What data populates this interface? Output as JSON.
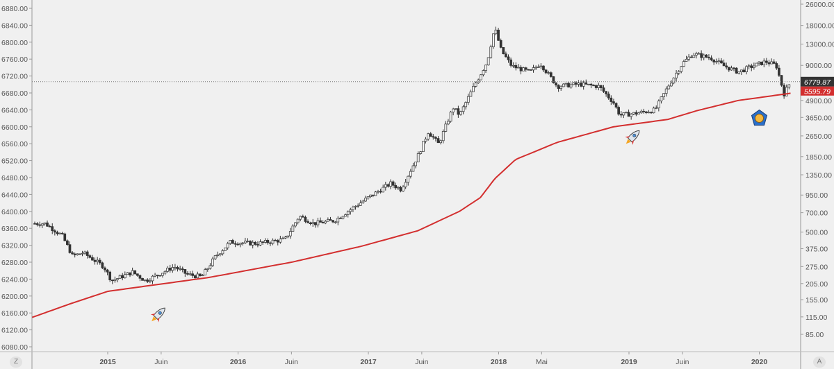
{
  "chart_data": {
    "type": "candlestick",
    "scale": "log",
    "title": "",
    "left_axis_ticks": [
      "6880.00",
      "6840.00",
      "6800.00",
      "6760.00",
      "6720.00",
      "6680.00",
      "6640.00",
      "6600.00",
      "6560.00",
      "6520.00",
      "6480.00",
      "6440.00",
      "6400.00",
      "6360.00",
      "6320.00",
      "6280.00",
      "6240.00",
      "6200.00",
      "6160.00",
      "6120.00",
      "6080.00"
    ],
    "right_axis_ticks": [
      26000,
      18000,
      13000,
      9000,
      4900,
      3650,
      2650,
      1850,
      1350,
      950,
      700,
      500,
      375,
      275,
      205,
      155,
      115,
      85
    ],
    "right_axis_labels": [
      "26000.00",
      "18000.00",
      "13000.00",
      "9000.00",
      "4900.00",
      "3650.00",
      "2650.00",
      "1850.00",
      "1350.00",
      "950.00",
      "700.00",
      "500.00",
      "375.00",
      "275.00",
      "205.00",
      "155.00",
      "115.00",
      "85.00"
    ],
    "ylim": [
      85,
      26000
    ],
    "xlim": [
      2014.42,
      2020.32
    ],
    "x_ticks": [
      {
        "t": 2015.0,
        "label": "2015",
        "major": true
      },
      {
        "t": 2015.41,
        "label": "Juin",
        "major": false
      },
      {
        "t": 2016.0,
        "label": "2016",
        "major": true
      },
      {
        "t": 2016.41,
        "label": "Juin",
        "major": false
      },
      {
        "t": 2017.0,
        "label": "2017",
        "major": true
      },
      {
        "t": 2017.41,
        "label": "Juin",
        "major": false
      },
      {
        "t": 2018.0,
        "label": "2018",
        "major": true
      },
      {
        "t": 2018.33,
        "label": "Mai",
        "major": false
      },
      {
        "t": 2019.0,
        "label": "2019",
        "major": true
      },
      {
        "t": 2019.41,
        "label": "Juin",
        "major": false
      },
      {
        "t": 2020.0,
        "label": "2020",
        "major": true
      }
    ],
    "price_path": [
      [
        2014.44,
        580
      ],
      [
        2014.52,
        580
      ],
      [
        2014.65,
        470
      ],
      [
        2014.73,
        330
      ],
      [
        2014.81,
        350
      ],
      [
        2014.97,
        275
      ],
      [
        2015.03,
        215
      ],
      [
        2015.19,
        250
      ],
      [
        2015.29,
        215
      ],
      [
        2015.51,
        275
      ],
      [
        2015.61,
        240
      ],
      [
        2015.72,
        230
      ],
      [
        2015.83,
        330
      ],
      [
        2015.94,
        420
      ],
      [
        2016.15,
        410
      ],
      [
        2016.36,
        440
      ],
      [
        2016.47,
        660
      ],
      [
        2016.58,
        580
      ],
      [
        2016.74,
        610
      ],
      [
        2016.84,
        715
      ],
      [
        2017.0,
        910
      ],
      [
        2017.17,
        1160
      ],
      [
        2017.25,
        1050
      ],
      [
        2017.38,
        1870
      ],
      [
        2017.46,
        2850
      ],
      [
        2017.54,
        2300
      ],
      [
        2017.65,
        4330
      ],
      [
        2017.7,
        3800
      ],
      [
        2017.81,
        6250
      ],
      [
        2017.91,
        9500
      ],
      [
        2017.97,
        17300
      ],
      [
        2018.02,
        11600
      ],
      [
        2018.1,
        8900
      ],
      [
        2018.24,
        8000
      ],
      [
        2018.32,
        9300
      ],
      [
        2018.45,
        6250
      ],
      [
        2018.61,
        6500
      ],
      [
        2018.77,
        6250
      ],
      [
        2018.88,
        4750
      ],
      [
        2018.93,
        3800
      ],
      [
        2019.04,
        3900
      ],
      [
        2019.2,
        4150
      ],
      [
        2019.3,
        6250
      ],
      [
        2019.41,
        9300
      ],
      [
        2019.49,
        11000
      ],
      [
        2019.63,
        10200
      ],
      [
        2019.73,
        8900
      ],
      [
        2019.84,
        8000
      ],
      [
        2019.95,
        8900
      ],
      [
        2020.05,
        9600
      ],
      [
        2020.13,
        9000
      ],
      [
        2020.19,
        5500
      ],
      [
        2020.24,
        6780
      ]
    ],
    "moving_average": [
      [
        2014.42,
        114
      ],
      [
        2014.71,
        144
      ],
      [
        2015.0,
        179
      ],
      [
        2015.78,
        228
      ],
      [
        2016.42,
        298
      ],
      [
        2016.95,
        392
      ],
      [
        2017.38,
        512
      ],
      [
        2017.7,
        717
      ],
      [
        2017.86,
        910
      ],
      [
        2017.97,
        1260
      ],
      [
        2018.13,
        1760
      ],
      [
        2018.45,
        2370
      ],
      [
        2018.88,
        3100
      ],
      [
        2019.3,
        3530
      ],
      [
        2019.52,
        4100
      ],
      [
        2019.84,
        4900
      ],
      [
        2020.24,
        5550
      ]
    ],
    "last_price": {
      "value": 6779.87,
      "label": "6779.87",
      "color": "#333333"
    },
    "ma_price": {
      "value": 5595.79,
      "label": "5595.79",
      "color": "#d32f2f"
    },
    "annotations": [
      {
        "icon": "rocket-icon",
        "t": 2015.39,
        "price": 120
      },
      {
        "icon": "rocket-icon",
        "t": 2019.03,
        "price": 2600
      },
      {
        "icon": "coin-icon",
        "t": 2020.0,
        "price": 3600
      }
    ],
    "grid": false
  },
  "controls": {
    "log_toggle": "Z",
    "auto_toggle": "A"
  },
  "colors": {
    "bg": "#f0f0f0",
    "candle": "#333333",
    "ma": "#d32f2f"
  }
}
